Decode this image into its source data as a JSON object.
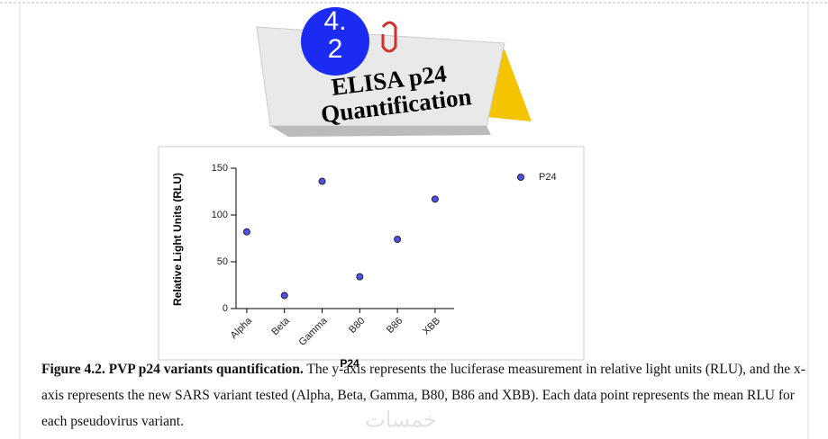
{
  "note": {
    "badge": "4.2",
    "lines": [
      "ELISA p24",
      "Quantification"
    ]
  },
  "chart_data": {
    "type": "scatter",
    "categories": [
      "Alpha",
      "Beta",
      "Gamma",
      "B80",
      "B86",
      "XBB"
    ],
    "series": [
      {
        "name": "P24",
        "color": "#5050e8",
        "values": [
          82,
          14,
          136,
          34,
          74,
          117
        ]
      }
    ],
    "ylim": [
      0,
      150
    ],
    "yticks": [
      0,
      50,
      100,
      150
    ],
    "y_label": "Relative Light Units (RLU)",
    "x_label": "P24",
    "legend": "upper right"
  },
  "caption": {
    "bold": "Figure 4.2. PVP p24 variants quantification.",
    "text": "The y-axis represents the luciferase measurement in relative light units (RLU), and the x-axis represents the new SARS variant tested (Alpha, Beta, Gamma, B80, B86 and XBB). Each data point represents the mean RLU for each pseudovirus variant."
  },
  "watermark": "خمسات"
}
